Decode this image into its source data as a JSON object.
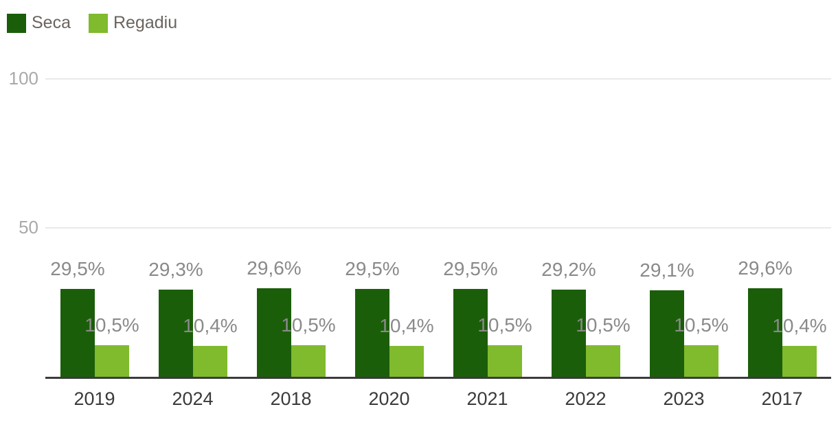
{
  "chart_data": {
    "type": "bar",
    "title": "",
    "xlabel": "",
    "ylabel": "",
    "categories": [
      "2019",
      "2024",
      "2018",
      "2020",
      "2021",
      "2022",
      "2023",
      "2017"
    ],
    "series": [
      {
        "name": "Seca",
        "color": "#1b5e0a",
        "values": [
          29.5,
          29.3,
          29.6,
          29.5,
          29.5,
          29.2,
          29.1,
          29.6
        ],
        "labels": [
          "29,5%",
          "29,3%",
          "29,6%",
          "29,5%",
          "29,5%",
          "29,2%",
          "29,1%",
          "29,6%"
        ]
      },
      {
        "name": "Regadiu",
        "color": "#80ba2d",
        "values": [
          10.5,
          10.4,
          10.5,
          10.4,
          10.5,
          10.5,
          10.5,
          10.4
        ],
        "labels": [
          "10,5%",
          "10,4%",
          "10,5%",
          "10,4%",
          "10,5%",
          "10,5%",
          "10,5%",
          "10,4%"
        ]
      }
    ],
    "yticks": [
      50,
      100
    ],
    "ylim": [
      0,
      100
    ],
    "grid": true,
    "legend_position": "top-left",
    "value_suffix": "%"
  },
  "colors": {
    "background": "#ffffff",
    "seca": "#1b5e0a",
    "regadiu": "#80ba2d",
    "data_label": "#8a8a8a",
    "ytick_label": "#a9a9a9",
    "xtick_label": "#3a3a3a",
    "gridline": "#e9e9e9",
    "axis_line": "#3b3b3b",
    "legend_text": "#6b645f"
  }
}
